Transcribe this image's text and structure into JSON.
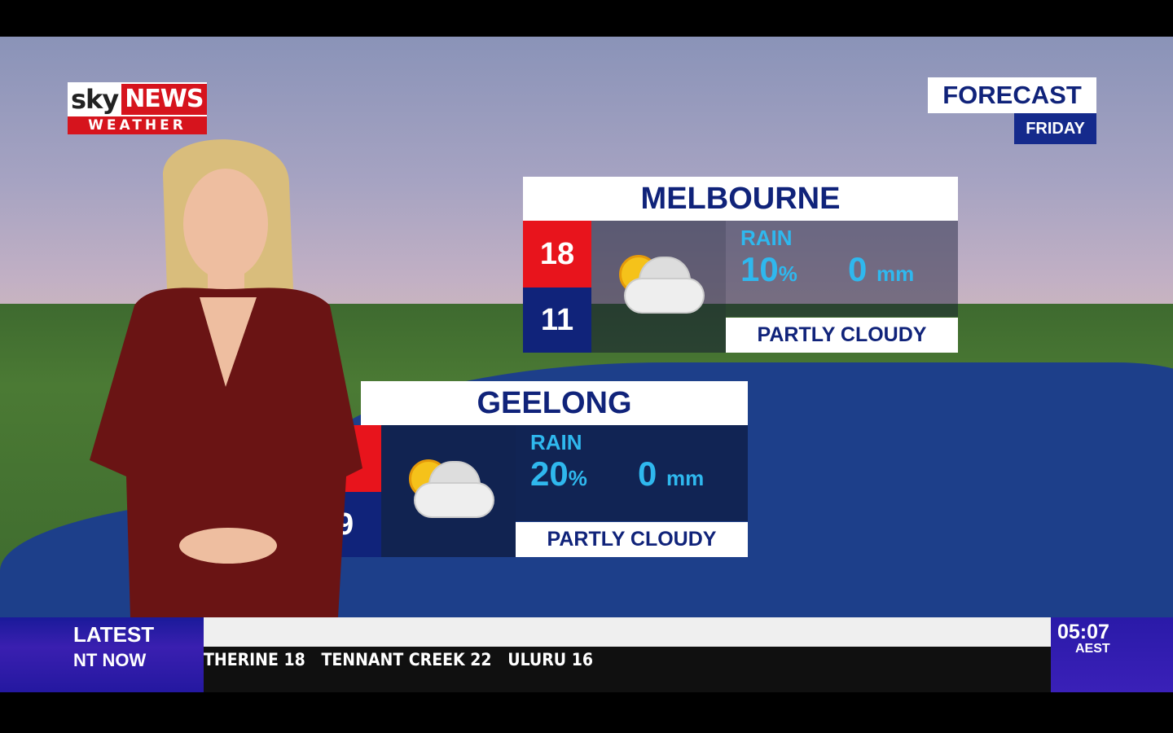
{
  "logo": {
    "brand": "sky NEWS",
    "sub": "WEATHER",
    "sky": "sky",
    "news": "NEWS"
  },
  "forecast": {
    "title": "FORECAST",
    "day": "FRIDAY"
  },
  "cards": [
    {
      "city": "MELBOURNE",
      "high": "18",
      "low": "11",
      "icon": "partly-cloudy-icon",
      "rain_label": "RAIN",
      "rain_pct": "10",
      "pct_unit": "%",
      "rain_mm": "0",
      "mm_unit": "mm",
      "condition": "PARTLY CLOUDY"
    },
    {
      "city": "GEELONG",
      "low": "9",
      "icon": "partly-cloudy-icon",
      "rain_label": "RAIN",
      "rain_pct": "20",
      "pct_unit": "%",
      "rain_mm": "0",
      "mm_unit": "mm",
      "condition": "PARTLY CLOUDY"
    }
  ],
  "ticker": {
    "label1": "LATEST",
    "label2": "NT NOW",
    "text": "THERINE 18   TENNANT CREEK 22   ULURU 16",
    "time": "05:07",
    "tz": "AEST"
  },
  "colors": {
    "navy": "#10237a",
    "red": "#e8141c",
    "rain": "#2fb8ee"
  }
}
